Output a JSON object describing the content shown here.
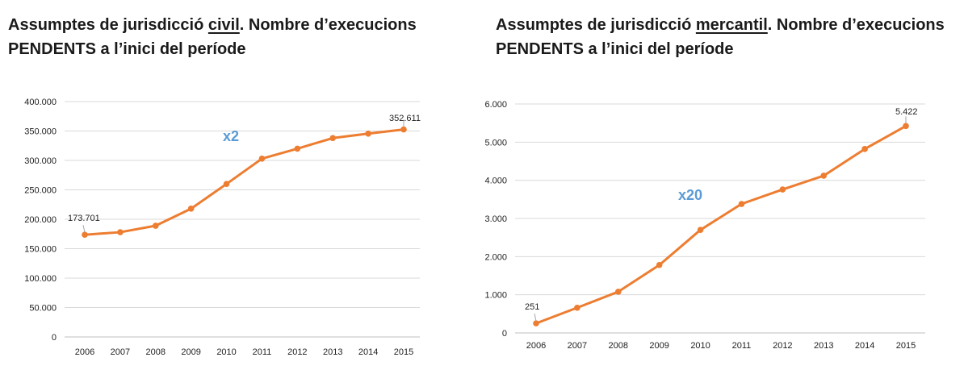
{
  "chart_data": [
    {
      "type": "line",
      "title_parts": [
        "Assumptes de jurisdicció ",
        "civil",
        ". Nombre d’execucions"
      ],
      "title_line2": "PENDENTS a l’inici del període",
      "categories": [
        "2006",
        "2007",
        "2008",
        "2009",
        "2010",
        "2011",
        "2012",
        "2013",
        "2014",
        "2015"
      ],
      "values": [
        173701,
        178000,
        189000,
        218000,
        260000,
        303000,
        320000,
        338000,
        345500,
        352611
      ],
      "ylim": [
        0,
        400000
      ],
      "yticks": [
        0,
        50000,
        100000,
        150000,
        200000,
        250000,
        300000,
        350000,
        400000
      ],
      "ytick_labels": [
        "0",
        "50.000",
        "100.000",
        "150.000",
        "200.000",
        "250.000",
        "300.000",
        "350.000",
        "400.000"
      ],
      "data_labels": [
        {
          "index": 0,
          "text": "173.701"
        },
        {
          "index": 9,
          "text": "352.611"
        }
      ],
      "annotation": "x2",
      "color": "#ed7d31",
      "grid": true
    },
    {
      "type": "line",
      "title_parts": [
        "Assumptes de jurisdicció ",
        "mercantil",
        ". Nombre d’execucions"
      ],
      "title_line2": "PENDENTS a l’inici del període",
      "categories": [
        "2006",
        "2007",
        "2008",
        "2009",
        "2010",
        "2011",
        "2012",
        "2013",
        "2014",
        "2015"
      ],
      "values": [
        251,
        660,
        1080,
        1780,
        2700,
        3380,
        3760,
        4120,
        4820,
        5422
      ],
      "ylim": [
        0,
        6000
      ],
      "yticks": [
        0,
        1000,
        2000,
        3000,
        4000,
        5000,
        6000
      ],
      "ytick_labels": [
        "0",
        "1.000",
        "2.000",
        "3.000",
        "4.000",
        "5.000",
        "6.000"
      ],
      "data_labels": [
        {
          "index": 0,
          "text": "251"
        },
        {
          "index": 9,
          "text": "5.422"
        }
      ],
      "annotation": "x20",
      "color": "#ed7d31",
      "grid": true
    }
  ]
}
